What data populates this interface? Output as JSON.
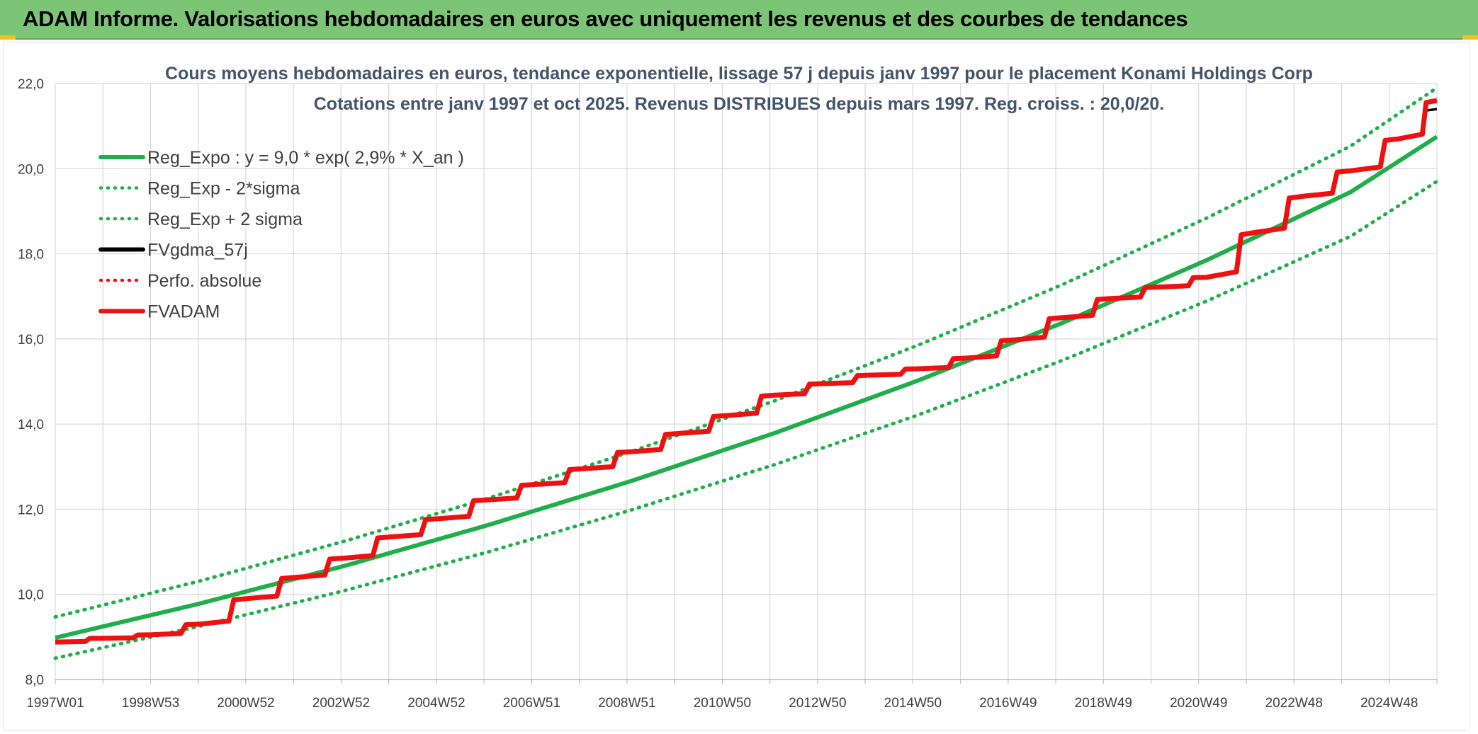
{
  "banner": {
    "title": "ADAM Informe. Valorisations hebdomadaires en euros avec uniquement les revenus et des courbes de tendances"
  },
  "colors": {
    "banner_bg": "#7cc576",
    "green": "#1fae4a",
    "red": "#ee1111",
    "black": "#000000",
    "grid": "#d9d9d9",
    "accent": "#f2c21b"
  },
  "chart_data": {
    "type": "line",
    "title": "Cours moyens hebdomadaires en euros, tendance exponentielle, lissage 57 j depuis janv 1997 pour le placement Konami Holdings Corp",
    "subtitle": "Cotations entre janv 1997 et oct 2025. Revenus DISTRIBUES depuis mars 1997. Reg. croiss. : 20,0/20.",
    "xlabel": "",
    "ylabel": "",
    "ylim": [
      8.0,
      22.0
    ],
    "yticks": [
      "8,0",
      "10,0",
      "12,0",
      "14,0",
      "16,0",
      "18,0",
      "20,0",
      "22,0"
    ],
    "xlim": [
      1997.0,
      2025.8
    ],
    "x_tick_labels": [
      "1997W01",
      "1998W53",
      "2000W52",
      "2002W52",
      "2004W52",
      "2006W51",
      "2008W51",
      "2010W50",
      "2012W50",
      "2014W50",
      "2016W49",
      "2018W49",
      "2020W49",
      "2022W48",
      "2024W48"
    ],
    "grid": true,
    "legend_position": "top-left",
    "legend": [
      {
        "label": "Reg_Expo : y = 9,0 * exp( 2,9% *  X_an )",
        "color": "#1fae4a",
        "style": "solid"
      },
      {
        "label": "Reg_Exp - 2*sigma",
        "color": "#1fae4a",
        "style": "dotted"
      },
      {
        "label": "Reg_Exp + 2 sigma",
        "color": "#1fae4a",
        "style": "dotted"
      },
      {
        "label": "FVgdma_57j",
        "color": "#000000",
        "style": "solid"
      },
      {
        "label": "Perfo. absolue",
        "color": "#ee1111",
        "style": "dotted"
      },
      {
        "label": "FVADAM",
        "color": "#ee1111",
        "style": "solid"
      }
    ],
    "series": [
      {
        "name": "Reg_Expo : y = 9,0 * exp( 2,9% *  X_an )",
        "style": "solid",
        "x": [
          1997,
          2000,
          2003,
          2006,
          2009,
          2012,
          2015,
          2018,
          2021,
          2024,
          2025.8
        ],
        "values": [
          8.98,
          9.78,
          10.66,
          11.62,
          12.66,
          13.79,
          15.03,
          16.38,
          17.85,
          19.45,
          20.75
        ]
      },
      {
        "name": "Reg_Exp - 2*sigma",
        "style": "dotted",
        "x": [
          1997,
          2000,
          2003,
          2006,
          2009,
          2012,
          2015,
          2018,
          2021,
          2024,
          2025.8
        ],
        "values": [
          8.5,
          9.25,
          10.08,
          10.99,
          11.98,
          13.05,
          14.22,
          15.5,
          16.89,
          18.41,
          19.7
        ]
      },
      {
        "name": "Reg_Exp + 2 sigma",
        "style": "dotted",
        "x": [
          1997,
          2000,
          2003,
          2006,
          2009,
          2012,
          2015,
          2018,
          2021,
          2024,
          2025.8
        ],
        "values": [
          9.47,
          10.31,
          11.24,
          12.25,
          13.35,
          14.55,
          15.86,
          17.28,
          18.84,
          20.53,
          21.9
        ]
      },
      {
        "name": "FVgdma_57j",
        "style": "solid",
        "x": [
          1997.0,
          1998.0,
          1999.0,
          2000.0,
          2001.0,
          2002.0,
          2003.0,
          2004.0,
          2005.0,
          2006.0,
          2007.0,
          2008.0,
          2009.0,
          2010.0,
          2011.0,
          2012.0,
          2013.0,
          2014.0,
          2015.0,
          2016.0,
          2017.0,
          2018.0,
          2019.0,
          2020.0,
          2021.0,
          2022.0,
          2023.0,
          2024.0,
          2025.0,
          2025.8
        ],
        "values": [
          8.9,
          8.97,
          9.05,
          9.3,
          9.9,
          10.4,
          10.85,
          11.35,
          11.78,
          12.22,
          12.58,
          12.95,
          13.35,
          13.78,
          14.2,
          14.68,
          14.95,
          15.15,
          15.3,
          15.55,
          15.98,
          16.5,
          16.95,
          17.22,
          17.45,
          18.5,
          19.35,
          19.95,
          20.7,
          21.4
        ]
      },
      {
        "name": "FVADAM",
        "style": "solid",
        "x": [
          1997.0,
          1998.0,
          1999.0,
          2000.0,
          2001.0,
          2002.0,
          2003.0,
          2004.0,
          2005.0,
          2006.0,
          2007.0,
          2008.0,
          2009.0,
          2010.0,
          2011.0,
          2012.0,
          2013.0,
          2014.0,
          2015.0,
          2016.0,
          2017.0,
          2018.0,
          2019.0,
          2020.0,
          2021.0,
          2022.0,
          2023.0,
          2024.0,
          2025.0,
          2025.8
        ],
        "values": [
          8.88,
          8.97,
          9.05,
          9.3,
          9.9,
          10.4,
          10.85,
          11.35,
          11.78,
          12.22,
          12.58,
          12.95,
          13.35,
          13.78,
          14.2,
          14.68,
          14.95,
          15.15,
          15.3,
          15.55,
          15.98,
          16.5,
          16.95,
          17.22,
          17.45,
          18.5,
          19.35,
          19.95,
          20.7,
          21.6
        ]
      }
    ]
  }
}
